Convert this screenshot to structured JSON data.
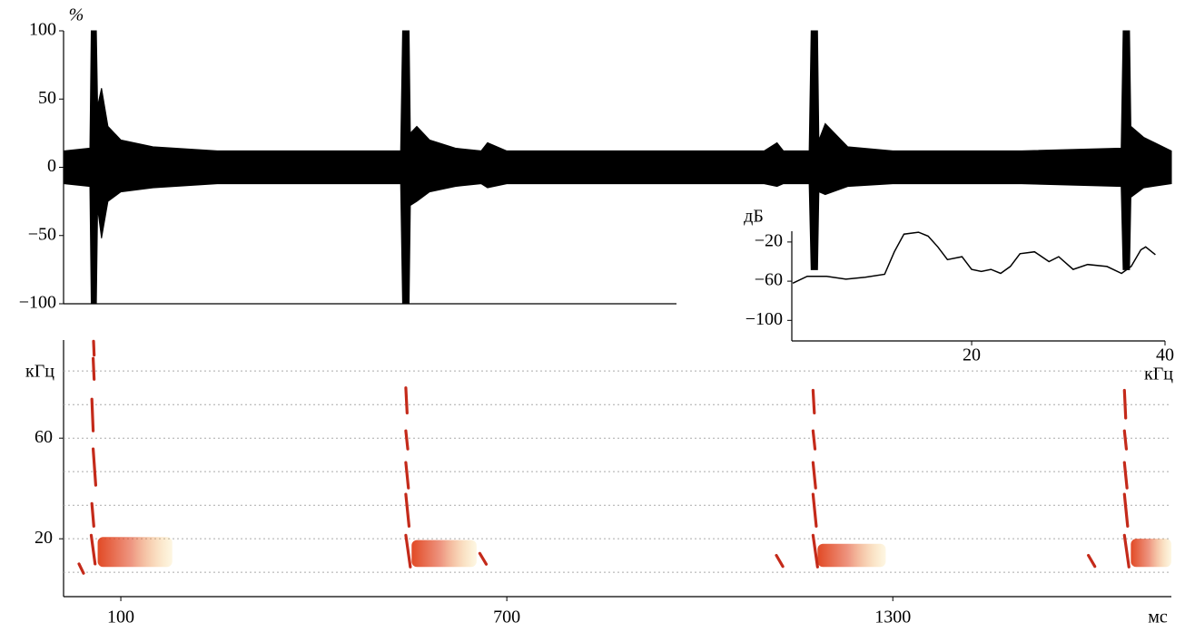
{
  "chart_data": [
    {
      "type": "area",
      "y_unit": "%",
      "xlim": [
        11,
        1733
      ],
      "ylim": [
        -100,
        100
      ],
      "yticks": [
        100,
        50,
        0,
        {
          "value": -50,
          "label": "−50"
        },
        {
          "value": -100,
          "label": "−100"
        }
      ],
      "x": [
        11,
        52,
        54,
        62,
        64,
        70,
        80,
        100,
        150,
        250,
        400,
        535,
        538,
        548,
        550,
        560,
        580,
        620,
        660,
        670,
        700,
        800,
        1000,
        1100,
        1120,
        1130,
        1170,
        1173,
        1183,
        1185,
        1195,
        1230,
        1300,
        1500,
        1655,
        1658,
        1668,
        1670,
        1690,
        1733
      ],
      "series": [
        {
          "color": "#000000",
          "values": [
            12,
            14,
            100,
            100,
            45,
            58,
            30,
            20,
            15,
            12,
            12,
            12,
            100,
            100,
            25,
            30,
            20,
            14,
            12,
            18,
            12,
            12,
            12,
            12,
            18,
            12,
            12,
            100,
            100,
            20,
            32,
            15,
            12,
            12,
            14,
            100,
            100,
            30,
            22,
            12
          ]
        },
        {
          "color": "#000000",
          "values": [
            -12,
            -14,
            -100,
            -100,
            -30,
            -52,
            -25,
            -18,
            -15,
            -12,
            -12,
            -12,
            -100,
            -100,
            -28,
            -25,
            -18,
            -14,
            -12,
            -15,
            -12,
            -12,
            -12,
            -12,
            -14,
            -12,
            -12,
            -75,
            -75,
            -18,
            -20,
            -14,
            -12,
            -12,
            -14,
            -75,
            -75,
            -22,
            -15,
            -12
          ]
        }
      ]
    },
    {
      "type": "line",
      "y_unit": "дБ",
      "x_unit": "кГц",
      "xlim": [
        1.4,
        40
      ],
      "ylim": [
        -121,
        -9
      ],
      "xticks": [
        20,
        40
      ],
      "yticks": [
        {
          "value": -20,
          "label": "−20"
        },
        {
          "value": -60,
          "label": "−60"
        },
        {
          "value": -100,
          "label": "−100"
        }
      ],
      "x": [
        1.5,
        3,
        5,
        7,
        9,
        11,
        12,
        13,
        14.5,
        15.5,
        16.5,
        17.5,
        19,
        20,
        21,
        22,
        23,
        24,
        25,
        26.5,
        28,
        29,
        30.5,
        32,
        34,
        35.5,
        36.5,
        37.5,
        38,
        39
      ],
      "values": [
        -62,
        -55,
        -55,
        -58,
        -56,
        -53,
        -30,
        -12,
        -10,
        -14,
        -25,
        -38,
        -35,
        -48,
        -50,
        -48,
        -52,
        -45,
        -32,
        -30,
        -40,
        -35,
        -48,
        -43,
        -45,
        -52,
        -45,
        -28,
        -25,
        -33
      ],
      "color": "#000000"
    },
    {
      "type": "spectrogram",
      "y_unit": "кГц",
      "x_unit": "мс",
      "xlim": [
        11,
        1733
      ],
      "ylim": [
        -3,
        99
      ],
      "xticks": [
        100,
        700,
        1300
      ],
      "yticks": [
        20,
        60
      ],
      "reference_lines": [
        6.7,
        20,
        33.3,
        46.7,
        60,
        73.3,
        86.7
      ],
      "sweep_color": "#c42a1a",
      "noise_color": "#e0401a",
      "sweeps": [
        [
          57.6,
          98.5,
          58.5,
          93
        ],
        [
          57,
          91.7,
          58.5,
          83.4
        ],
        [
          55,
          75.5,
          57,
          62.9
        ],
        [
          57,
          55.7,
          61,
          41.3
        ],
        [
          55,
          34,
          58,
          25
        ],
        [
          54,
          21.4,
          60,
          10
        ],
        [
          35,
          10,
          42,
          6.3
        ],
        [
          543,
          80,
          545,
          70
        ],
        [
          543,
          62.9,
          546,
          55.7
        ],
        [
          543,
          50.3,
          547,
          40.2
        ],
        [
          543,
          37.7,
          548,
          25
        ],
        [
          543,
          21.4,
          550,
          8.8
        ],
        [
          658,
          14.2,
          668,
          9.9
        ],
        [
          1176,
          79,
          1178,
          70
        ],
        [
          1176,
          62.9,
          1179,
          55.7
        ],
        [
          1176,
          50.3,
          1180,
          40.2
        ],
        [
          1176,
          37.7,
          1181,
          25
        ],
        [
          1176,
          21.4,
          1183,
          8.8
        ],
        [
          1119,
          13.4,
          1129,
          9
        ],
        [
          1660,
          79,
          1662,
          68
        ],
        [
          1660,
          62.9,
          1663,
          55.7
        ],
        [
          1660,
          50.3,
          1664,
          40.2
        ],
        [
          1660,
          37.7,
          1665,
          25
        ],
        [
          1660,
          21.4,
          1667,
          8.8
        ],
        [
          1604,
          13.4,
          1614,
          9
        ]
      ],
      "noise": [
        [
          64,
          180,
          8.8,
          20.7
        ],
        [
          552,
          653,
          8.8,
          19.5
        ],
        [
          1183,
          1289,
          8.8,
          18
        ],
        [
          1670,
          1733,
          8.8,
          20
        ]
      ]
    }
  ]
}
